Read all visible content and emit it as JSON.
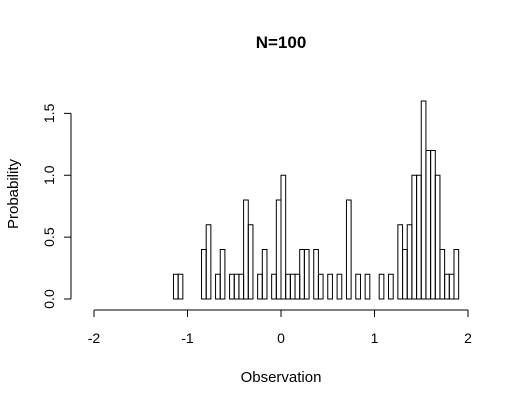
{
  "chart_data": {
    "type": "bar",
    "title": "N=100",
    "xlabel": "Observation",
    "ylabel": "Probability",
    "xlim": [
      -2,
      2
    ],
    "ylim": [
      0,
      1.6
    ],
    "x_ticks": [
      -2,
      -1,
      0,
      1,
      2
    ],
    "x_tick_labels": [
      "-2",
      "-1",
      "0",
      "1",
      "2"
    ],
    "y_ticks": [
      0,
      0.5,
      1,
      1.5
    ],
    "y_tick_labels": [
      "0.0",
      "0.5",
      "1.0",
      "1.5"
    ],
    "bin_width": 0.05,
    "bin_start": -1.15,
    "values": [
      0.2,
      0.2,
      0,
      0,
      0,
      0,
      0.4,
      0.6,
      0,
      0.2,
      0.4,
      0,
      0.2,
      0.2,
      0.2,
      0.8,
      0.6,
      0,
      0.2,
      0.4,
      0,
      0.2,
      0.8,
      1.0,
      0.2,
      0.2,
      0.2,
      0.4,
      0.4,
      0,
      0.4,
      0.2,
      0,
      0.2,
      0,
      0.2,
      0,
      0.8,
      0,
      0.2,
      0,
      0.2,
      0,
      0,
      0.2,
      0,
      0.2,
      0,
      0.6,
      0.4,
      0.6,
      1.0,
      1.0,
      1.6,
      1.2,
      1.2,
      1.0,
      0.4,
      0.2,
      0.2,
      0.4
    ],
    "grid": false,
    "legend": "none"
  }
}
